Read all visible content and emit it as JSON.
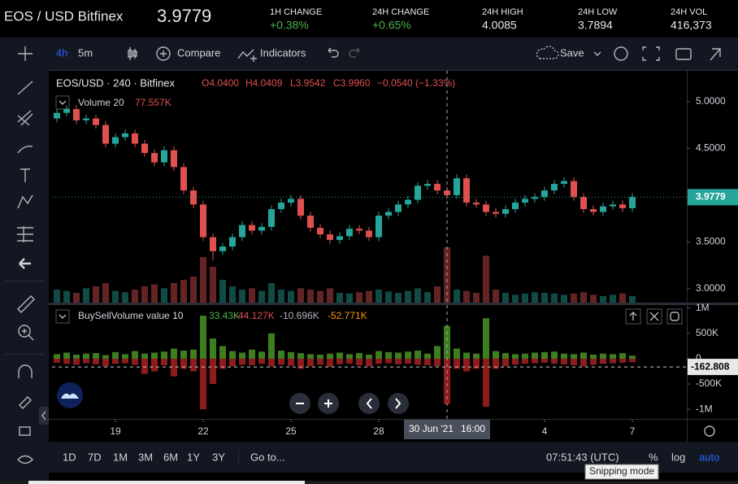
{
  "header": {
    "pair": "EOS / USD Bitfinex",
    "price": "3.9779",
    "stats": [
      {
        "label": "1H CHANGE",
        "value": "+0.38%"
      },
      {
        "label": "24H CHANGE",
        "value": "+0.65%"
      },
      {
        "label": "24H HIGH",
        "value": "4.0085"
      },
      {
        "label": "24H LOW",
        "value": "3.7894"
      },
      {
        "label": "24H VOL",
        "value": "416,373"
      }
    ]
  },
  "toolbar": {
    "interval": "4h",
    "interval2": "5m",
    "compare": "Compare",
    "indicators": "Indicators",
    "save": "Save"
  },
  "legend": {
    "symbol": "EOS/USD · 240 · Bitfinex",
    "open": "O4.0400",
    "high": "H4.0409",
    "low": "L3.9542",
    "close": "C3.9960",
    "change": "−0.0540 (−1.33%)",
    "volume_name": "Volume 20",
    "volume_value": "77.557K"
  },
  "indicator_legend": {
    "name": "BuySellVolume value 10",
    "v1": "33.43K",
    "v2": "-44.127K",
    "v3": "-10.696K",
    "v4": "-52.771K"
  },
  "bottom_bar": {
    "ranges": [
      "1D",
      "7D",
      "1M",
      "3M",
      "6M",
      "1Y",
      "3Y"
    ],
    "goto": "Go to...",
    "clock": "07:51:43 (UTC)",
    "percent": "%",
    "log": "log",
    "auto": "auto",
    "tooltip": "Snipping mode"
  },
  "chart_data": {
    "type": "candlestick",
    "open": [
      4.82,
      4.88,
      4.92,
      4.8,
      4.82,
      4.75,
      4.55,
      4.62,
      4.66,
      4.55,
      4.45,
      4.35,
      4.48,
      4.3,
      4.05,
      3.9,
      3.55,
      3.4,
      3.45,
      3.55,
      3.68,
      3.62,
      3.66,
      3.85,
      3.92,
      3.96,
      3.78,
      3.65,
      3.58,
      3.52,
      3.56,
      3.64,
      3.62,
      3.55,
      3.78,
      3.82,
      3.9,
      3.95,
      4.1,
      4.12,
      4.05,
      4.0,
      4.18,
      3.92,
      3.9,
      3.82,
      3.8,
      3.85,
      3.92,
      3.96,
      3.98,
      4.05,
      4.12,
      4.15,
      3.98,
      3.85,
      3.82,
      3.88,
      3.9,
      3.86
    ],
    "high": [
      4.92,
      4.96,
      4.96,
      4.86,
      4.86,
      4.79,
      4.66,
      4.7,
      4.7,
      4.59,
      4.49,
      4.52,
      4.52,
      4.34,
      4.09,
      3.94,
      3.59,
      3.49,
      3.59,
      3.72,
      3.72,
      3.7,
      3.89,
      3.96,
      4.0,
      4.0,
      3.82,
      3.69,
      3.62,
      3.6,
      3.68,
      3.68,
      3.66,
      3.82,
      3.86,
      3.94,
      3.99,
      4.14,
      4.16,
      4.16,
      4.09,
      4.22,
      4.22,
      3.96,
      3.94,
      3.86,
      3.89,
      3.96,
      4.0,
      4.02,
      4.09,
      4.16,
      4.19,
      4.19,
      4.02,
      3.89,
      3.92,
      3.94,
      3.94,
      4.02
    ],
    "low": [
      4.78,
      4.84,
      4.76,
      4.76,
      4.71,
      4.51,
      4.51,
      4.58,
      4.51,
      4.41,
      4.31,
      4.31,
      4.26,
      4.01,
      3.86,
      3.51,
      3.3,
      3.36,
      3.41,
      3.51,
      3.58,
      3.58,
      3.62,
      3.81,
      3.88,
      3.74,
      3.61,
      3.54,
      3.48,
      3.48,
      3.52,
      3.58,
      3.51,
      3.51,
      3.74,
      3.78,
      3.86,
      3.91,
      4.06,
      4.01,
      3.96,
      3.96,
      3.88,
      3.86,
      3.78,
      3.76,
      3.76,
      3.81,
      3.88,
      3.92,
      3.94,
      4.01,
      4.08,
      3.94,
      3.81,
      3.78,
      3.78,
      3.84,
      3.82,
      3.82
    ],
    "close": [
      4.88,
      4.92,
      4.8,
      4.82,
      4.75,
      4.55,
      4.62,
      4.66,
      4.55,
      4.45,
      4.35,
      4.48,
      4.3,
      4.05,
      3.9,
      3.55,
      3.4,
      3.45,
      3.55,
      3.68,
      3.62,
      3.66,
      3.85,
      3.92,
      3.96,
      3.78,
      3.65,
      3.58,
      3.52,
      3.56,
      3.64,
      3.62,
      3.55,
      3.78,
      3.82,
      3.9,
      3.95,
      4.1,
      4.12,
      4.05,
      4.0,
      4.18,
      3.92,
      3.9,
      3.82,
      3.8,
      3.85,
      3.92,
      3.96,
      3.98,
      4.05,
      4.12,
      4.15,
      3.98,
      3.85,
      3.82,
      3.88,
      3.9,
      3.86,
      3.98
    ],
    "volume": [
      20,
      18,
      15,
      22,
      25,
      30,
      18,
      16,
      20,
      25,
      28,
      22,
      30,
      35,
      40,
      70,
      55,
      35,
      25,
      20,
      22,
      18,
      30,
      20,
      18,
      22,
      20,
      18,
      22,
      15,
      14,
      16,
      18,
      20,
      17,
      15,
      18,
      22,
      16,
      25,
      85,
      20,
      18,
      15,
      72,
      20,
      15,
      12,
      14,
      16,
      15,
      14,
      12,
      14,
      16,
      12,
      10,
      12,
      14,
      10
    ],
    "ylim": [
      2.85,
      5.33
    ],
    "yticks": [
      {
        "value": 5,
        "label": "5.0000"
      },
      {
        "value": 4.5,
        "label": "4.5000"
      },
      {
        "value": 3.5,
        "label": "3.5000"
      },
      {
        "value": 3,
        "label": "3.0000"
      }
    ],
    "last_price": {
      "value": 3.9779,
      "label": "3.9779"
    },
    "buy": [
      90000,
      120000,
      80000,
      100000,
      110000,
      70000,
      130000,
      90000,
      150000,
      100000,
      120000,
      140000,
      200000,
      160000,
      180000,
      850000,
      400000,
      250000,
      150000,
      120000,
      180000,
      140000,
      500000,
      160000,
      130000,
      110000,
      90000,
      80000,
      100000,
      120000,
      90000,
      110000,
      80000,
      150000,
      130000,
      120000,
      140000,
      160000,
      100000,
      250000,
      650000,
      200000,
      120000,
      100000,
      800000,
      150000,
      110000,
      90000,
      100000,
      120000,
      130000,
      140000,
      100000,
      90000,
      120000,
      80000,
      100000,
      90000,
      110000,
      60000
    ],
    "sell": [
      -80000,
      -100000,
      -120000,
      -90000,
      -110000,
      -150000,
      -100000,
      -90000,
      -120000,
      -300000,
      -250000,
      -130000,
      -350000,
      -200000,
      -250000,
      -1000000,
      -500000,
      -200000,
      -150000,
      -120000,
      -130000,
      -100000,
      -150000,
      -120000,
      -140000,
      -200000,
      -150000,
      -120000,
      -160000,
      -110000,
      -100000,
      -130000,
      -150000,
      -100000,
      -90000,
      -110000,
      -100000,
      -120000,
      -130000,
      -150000,
      -900000,
      -200000,
      -250000,
      -200000,
      -950000,
      -200000,
      -150000,
      -120000,
      -100000,
      -90000,
      -80000,
      -100000,
      -110000,
      -130000,
      -150000,
      -120000,
      -100000,
      -90000,
      -80000,
      -70000
    ],
    "y2lim": [
      -1190000,
      1060000
    ],
    "y2ticks": [
      {
        "value": 1000000,
        "label": "1M"
      },
      {
        "value": 500000,
        "label": "500K"
      },
      0,
      {
        "value": -500000,
        "label": "-500K"
      },
      {
        "value": -1000000,
        "label": "-1M"
      }
    ],
    "indicator_last": {
      "value": -162808,
      "label": "-162.808"
    },
    "xticks": [
      {
        "value": 6,
        "label": "19"
      },
      {
        "value": 15,
        "label": "22"
      },
      {
        "value": 24,
        "label": "25"
      },
      {
        "value": 33,
        "label": "28"
      },
      {
        "value": 50,
        "label": "4"
      },
      {
        "value": 59,
        "label": "7"
      }
    ],
    "crosshair": {
      "value": 40,
      "label": "30 Jun '21",
      "time": "16:00"
    },
    "up_color": "#26a69a",
    "down_color": "#e0504f",
    "buy_color": "#3d7f1f",
    "sell_color": "#8e1c1c"
  }
}
